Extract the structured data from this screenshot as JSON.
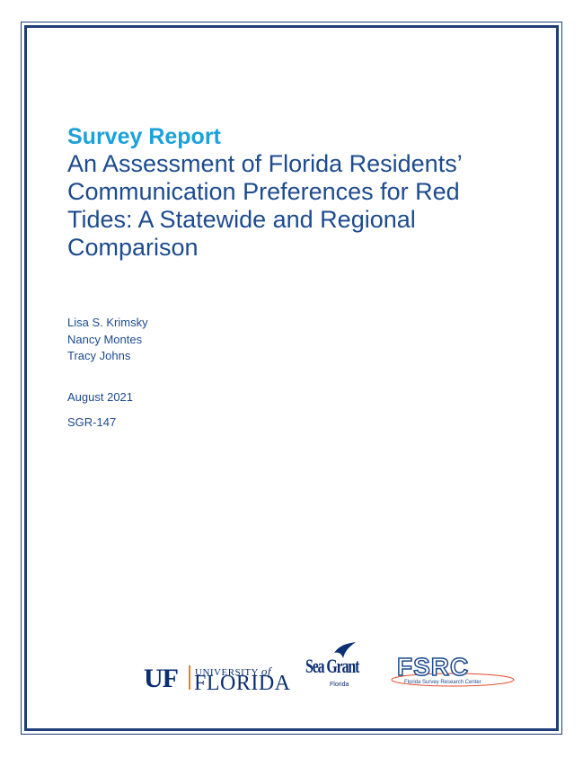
{
  "cover": {
    "kicker": "Survey Report",
    "title": "An Assessment of Florida Residents’ Communication Preferences for Red Tides: A Statewide and Regional Comparison",
    "authors": [
      "Lisa S. Krimsky",
      "Nancy Montes",
      "Tracy Johns"
    ],
    "date": "August 2021",
    "report_number": "SGR-147"
  },
  "logos": {
    "uf_mark": "UF",
    "uf_university": "UNIVERSITY",
    "uf_of": "of",
    "uf_florida": "FLORIDA",
    "seagrant_name": "Sea Grant",
    "seagrant_sub": "Florida",
    "fsrc_letters": "FSRC",
    "fsrc_sub": "Florida Survey Research Center"
  },
  "colors": {
    "frame": "#1f3e7a",
    "kicker": "#1ba1db",
    "text": "#1d4b8f",
    "uf_orange": "#f07f1a"
  }
}
